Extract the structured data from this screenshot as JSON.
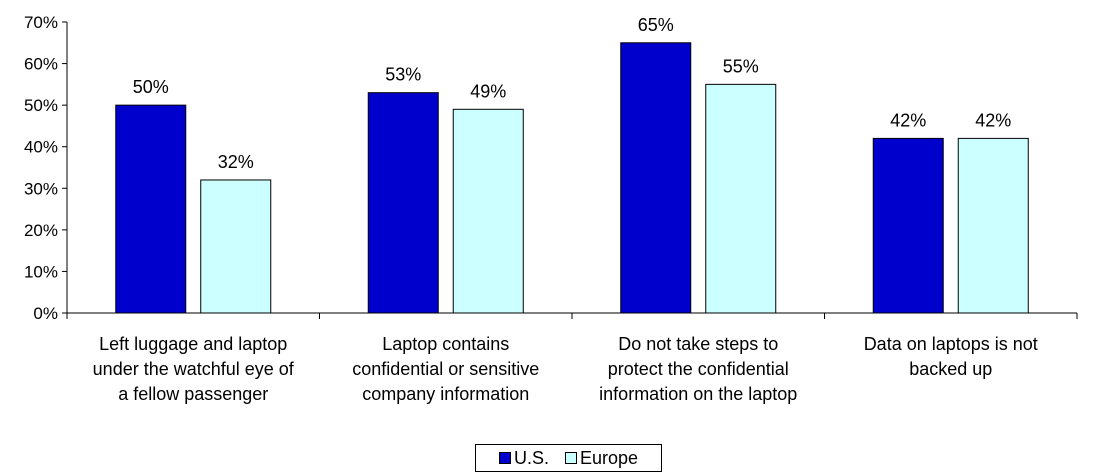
{
  "chart_data": {
    "type": "bar",
    "title": "",
    "xlabel": "",
    "ylabel": "",
    "ylim": [
      0,
      70
    ],
    "yticks": [
      "0%",
      "10%",
      "20%",
      "30%",
      "40%",
      "50%",
      "60%",
      "70%"
    ],
    "grid": false,
    "legend_position": "bottom",
    "categories": [
      [
        "Left luggage and laptop",
        "under the watchful eye of",
        "a fellow passenger"
      ],
      [
        "Laptop contains",
        "confidential or sensitive",
        "company information"
      ],
      [
        "Do not take steps to",
        "protect the confidential",
        "information on the laptop"
      ],
      [
        "Data on laptops is not",
        "backed up"
      ]
    ],
    "series": [
      {
        "name": "U.S.",
        "color": "#0000cc",
        "values": [
          50,
          53,
          65,
          42
        ],
        "labels": [
          "50%",
          "53%",
          "65%",
          "42%"
        ]
      },
      {
        "name": "Europe",
        "color": "#ccffff",
        "values": [
          32,
          49,
          55,
          42
        ],
        "labels": [
          "32%",
          "49%",
          "55%",
          "42%"
        ]
      }
    ]
  }
}
